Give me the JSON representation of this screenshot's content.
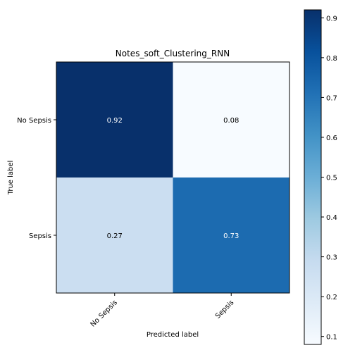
{
  "chart_data": {
    "type": "heatmap",
    "title": "Notes_soft_Clustering_RNN",
    "xlabel": "Predicted label",
    "ylabel": "True label",
    "x_categories": [
      "No Sepsis",
      "Sepsis"
    ],
    "y_categories": [
      "No Sepsis",
      "Sepsis"
    ],
    "values": [
      [
        0.92,
        0.08
      ],
      [
        0.27,
        0.73
      ]
    ],
    "value_labels": [
      [
        "0.92",
        "0.08"
      ],
      [
        "0.27",
        "0.73"
      ]
    ],
    "colormap": "Blues",
    "colorbar": {
      "range": [
        0.08,
        0.92
      ],
      "ticks": [
        0.1,
        0.2,
        0.3,
        0.4,
        0.5,
        0.6,
        0.7,
        0.8,
        0.9
      ],
      "tick_labels": [
        "0.1",
        "0.2",
        "0.3",
        "0.4",
        "0.5",
        "0.6",
        "0.7",
        "0.8",
        "0.9"
      ]
    },
    "x_tick_rotation": "45 degrees",
    "grid": false
  }
}
